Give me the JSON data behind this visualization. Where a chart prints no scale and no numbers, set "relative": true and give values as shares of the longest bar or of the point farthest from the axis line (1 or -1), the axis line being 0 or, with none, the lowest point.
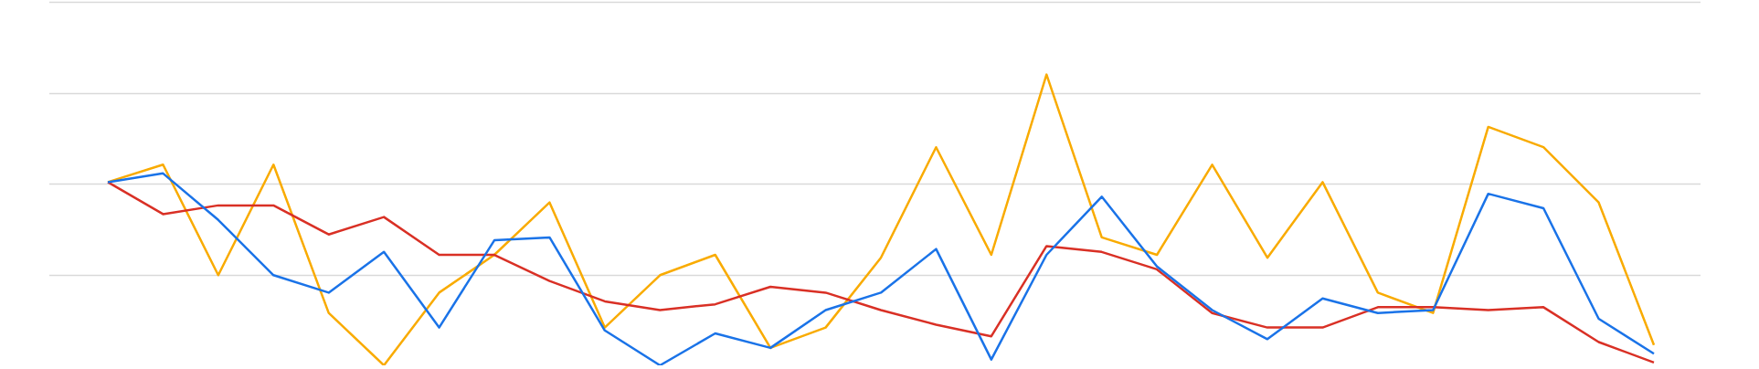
{
  "chart_data": {
    "type": "line",
    "relative": true,
    "grid": "y",
    "marker": "none",
    "categories": [
      null,
      null,
      null,
      null,
      null,
      null,
      null,
      null,
      null,
      null,
      null,
      null,
      null,
      null,
      null,
      null,
      null,
      null,
      null,
      null,
      null,
      null,
      null,
      null,
      null,
      null,
      null,
      null,
      null
    ],
    "series": [
      {
        "color": "#1a73e8",
        "values": [
          0.63,
          0.66,
          0.5,
          0.31,
          0.25,
          0.39,
          0.13,
          0.43,
          0.44,
          0.12,
          0,
          0.11,
          0.06,
          0.19,
          0.25,
          0.4,
          0.02,
          0.38,
          0.58,
          0.34,
          0.19,
          0.09,
          0.23,
          0.18,
          0.19,
          0.59,
          0.54,
          0.16,
          0.04
        ]
      },
      {
        "color": "#d93025",
        "values": [
          0.63,
          0.52,
          0.55,
          0.55,
          0.45,
          0.51,
          0.38,
          0.38,
          0.29,
          0.22,
          0.19,
          0.21,
          0.27,
          0.25,
          0.19,
          0.14,
          0.1,
          0.41,
          0.39,
          0.33,
          0.18,
          0.13,
          0.13,
          0.2,
          0.2,
          0.19,
          0.2,
          0.08,
          0.01
        ]
      },
      {
        "color": "#f9ab00",
        "values": [
          0.63,
          0.69,
          0.31,
          0.69,
          0.18,
          0,
          0.25,
          0.38,
          0.56,
          0.13,
          0.31,
          0.38,
          0.06,
          0.13,
          0.37,
          0.75,
          0.38,
          1,
          0.44,
          0.38,
          0.69,
          0.37,
          0.63,
          0.25,
          0.18,
          0.82,
          0.75,
          0.56,
          0.07
        ]
      }
    ]
  }
}
